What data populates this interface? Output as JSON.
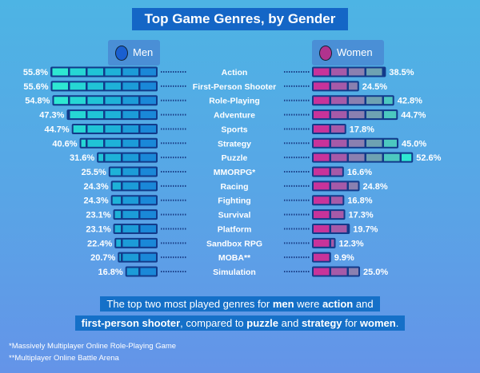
{
  "chart_data": {
    "type": "bar",
    "title": "Top Game Genres, by Gender",
    "categories": [
      "Action",
      "First-Person Shooter",
      "Role-Playing",
      "Adventure",
      "Sports",
      "Strategy",
      "Puzzle",
      "MMORPG*",
      "Racing",
      "Fighting",
      "Survival",
      "Platform",
      "Sandbox RPG",
      "MOBA**",
      "Simulation"
    ],
    "series": [
      {
        "name": "Men",
        "color": "#1a86d6",
        "values": [
          55.8,
          55.6,
          54.8,
          47.3,
          44.7,
          40.6,
          31.6,
          25.5,
          24.3,
          24.3,
          23.1,
          23.1,
          22.4,
          20.7,
          16.8
        ]
      },
      {
        "name": "Women",
        "color": "#c8339a",
        "values": [
          38.5,
          24.5,
          42.8,
          44.7,
          17.8,
          45.0,
          52.6,
          16.6,
          24.8,
          16.8,
          17.3,
          19.7,
          12.3,
          9.9,
          25.0
        ]
      }
    ],
    "value_suffix": "%",
    "orientation": "horizontal-diverging"
  },
  "note": {
    "line1": [
      "The top two most played genres for ",
      "men",
      " were ",
      "action",
      " and"
    ],
    "line2": [
      "first-person shooter",
      ", compared to ",
      "puzzle",
      " and ",
      "strategy",
      " for ",
      "women",
      "."
    ]
  },
  "footnotes": [
    "*Massively Multiplayer Online Role-Playing Game",
    "**Multiplayer Online Battle Arena"
  ]
}
